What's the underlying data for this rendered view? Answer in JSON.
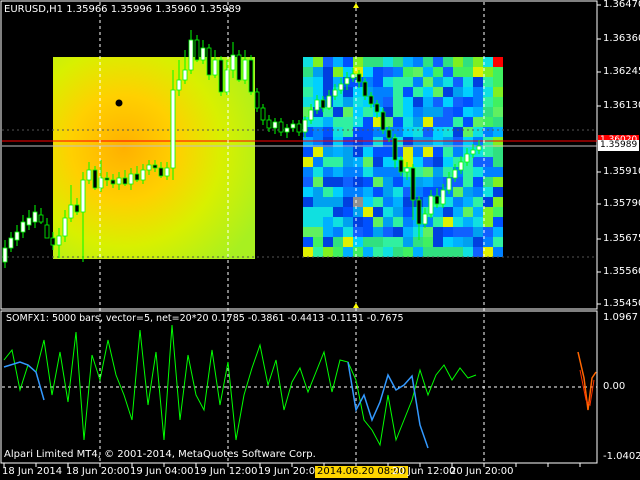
{
  "main": {
    "title": "EURUSD,H1  1.35966 1.35996 1.35960 1.35989",
    "price_axis": [
      "1.36470",
      "1.36360",
      "1.36245",
      "1.36130",
      "1.36020",
      "1.35910",
      "1.35790",
      "1.35675",
      "1.35560",
      "1.35450"
    ],
    "current_price": "1.35989",
    "current_price_color": "#ffffff",
    "red_line_color": "#ff0000",
    "bull_color": "#ffffff",
    "bear_color": "#000000",
    "wick_color": "#00ff00"
  },
  "indicator": {
    "title": "SOMFX1: 5000 bars, vector=5, net=20*20 0.1785 -0.3861 -0.4413 -0.1151 -0.7675",
    "axis": [
      "1.0967",
      "0.00",
      "-1.0402"
    ],
    "series_colors": [
      "#00ff00",
      "#3399ff",
      "#ff6600"
    ]
  },
  "footer": {
    "copyright": "Alpari Limited MT4, © 2001-2014, MetaQuotes Software Corp."
  },
  "time_axis": {
    "labels": [
      "18 Jun 2014",
      "18 Jun 20:00",
      "19 Jun 04:00",
      "19 Jun 12:00",
      "19 Jun 20:00",
      "2014.06.20 08:00",
      "20 Jun 12:00",
      "20 Jun 20:00"
    ],
    "highlighted": "2014.06.20 08:00"
  }
}
